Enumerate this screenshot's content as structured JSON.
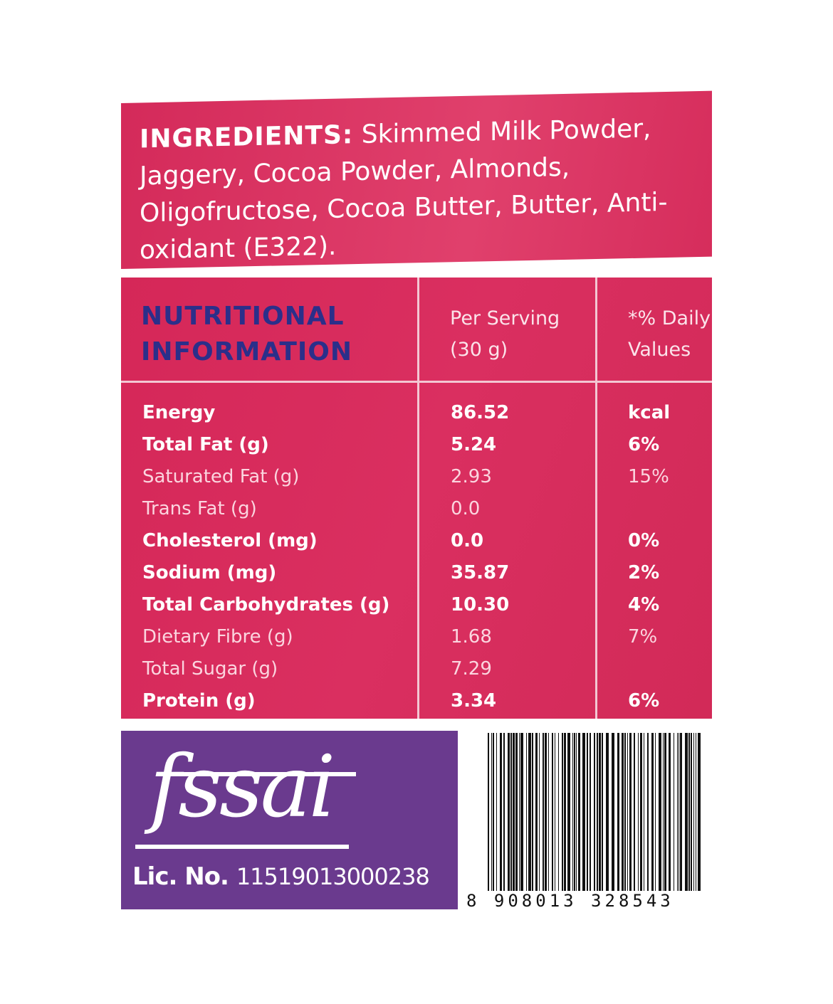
{
  "ingredients": {
    "label": "INGREDIENTS:",
    "text": "Skimmed Milk Powder, Jaggery, Cocoa Powder, Almonds, Oligofructose, Cocoa Butter, Butter, Anti-oxidant (E322)."
  },
  "nutrition": {
    "title_line1": "NUTRITIONAL",
    "title_line2": "INFORMATION",
    "col_serving_line1": "Per Serving",
    "col_serving_line2": "(30 g)",
    "col_dv_line1": "*% Daily",
    "col_dv_line2": "Values",
    "rows": [
      {
        "name": "Energy",
        "value": "86.52",
        "dv": "kcal",
        "bold": true
      },
      {
        "name": "Total Fat (g)",
        "value": "5.24",
        "dv": "6%",
        "bold": true
      },
      {
        "name": "Saturated Fat (g)",
        "value": "2.93",
        "dv": "15%",
        "bold": false
      },
      {
        "name": "Trans Fat (g)",
        "value": "0.0",
        "dv": "",
        "bold": false
      },
      {
        "name": "Cholesterol (mg)",
        "value": "0.0",
        "dv": "0%",
        "bold": true
      },
      {
        "name": "Sodium (mg)",
        "value": "35.87",
        "dv": "2%",
        "bold": true
      },
      {
        "name": "Total Carbohydrates (g)",
        "value": "10.30",
        "dv": "4%",
        "bold": true
      },
      {
        "name": "Dietary Fibre (g)",
        "value": "1.68",
        "dv": "7%",
        "bold": false
      },
      {
        "name": "Total Sugar (g)",
        "value": "7.29",
        "dv": "",
        "bold": false
      },
      {
        "name": "Protein (g)",
        "value": "3.34",
        "dv": "6%",
        "bold": true
      }
    ]
  },
  "fssai": {
    "logo_text": "fssai",
    "lic_label": "Lic. No.",
    "lic_number": "11519013000238"
  },
  "barcode": {
    "digits": "8 908013 328543"
  },
  "colors": {
    "label_pink": "#d8295b",
    "title_blue": "#2b2f8a",
    "fssai_purple": "#6a3a8e"
  }
}
